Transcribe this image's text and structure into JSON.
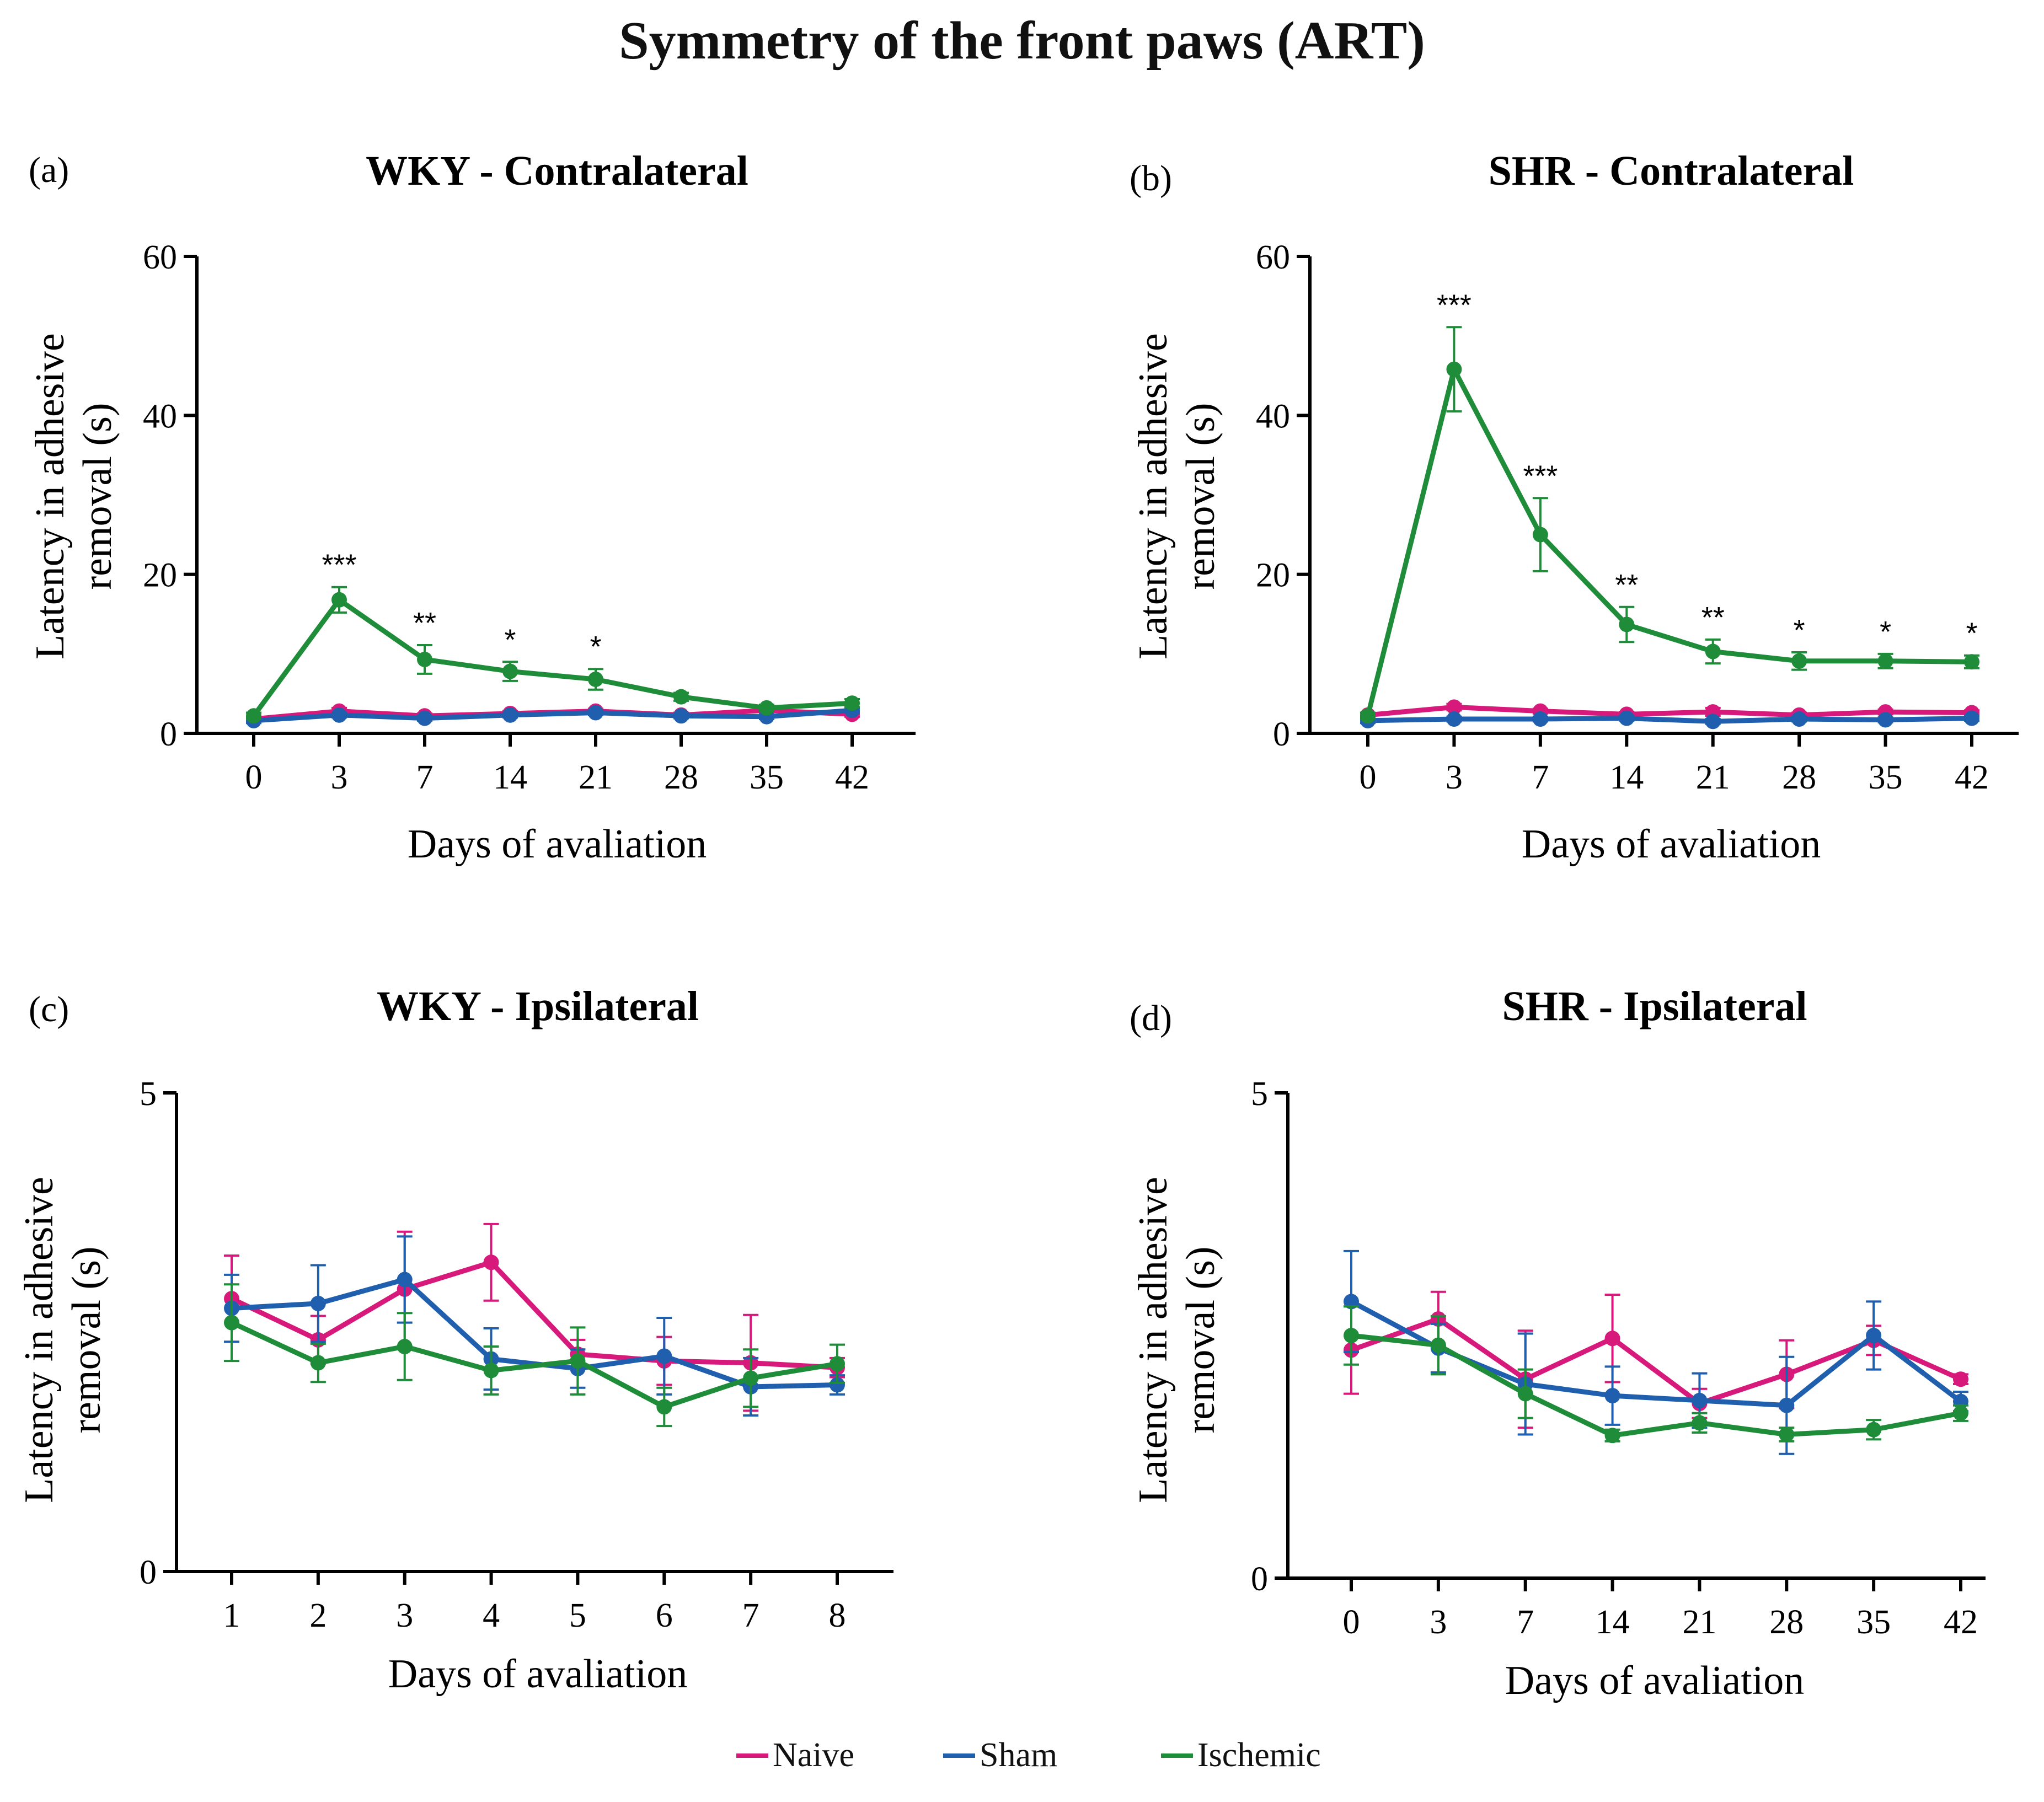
{
  "title": "Symmetry of the front paws (ART)",
  "legend": {
    "items": [
      {
        "label": "Naive",
        "color": "#d6197a"
      },
      {
        "label": "Sham",
        "color": "#1f5fae"
      },
      {
        "label": "Ischemic",
        "color": "#1f8c3a"
      }
    ]
  },
  "chart_data": [
    {
      "type": "line",
      "panel": "(a)",
      "title": "WKY - Contralateral",
      "xlabel": "Days of avaliation",
      "ylabel_line1": "Latency in adhesive",
      "ylabel_line2": "removal (s)",
      "categories": [
        "0",
        "3",
        "7",
        "14",
        "21",
        "28",
        "35",
        "42"
      ],
      "ylim": [
        0,
        60
      ],
      "yticks": [
        "0",
        "20",
        "40",
        "60"
      ],
      "series": [
        {
          "name": "Naive",
          "values": [
            1.8,
            2.8,
            2.2,
            2.5,
            2.8,
            2.3,
            2.9,
            2.4
          ],
          "errors": [
            0.3,
            0.4,
            0.3,
            0.3,
            0.3,
            0.3,
            0.4,
            0.3
          ]
        },
        {
          "name": "Sham",
          "values": [
            1.6,
            2.3,
            1.9,
            2.3,
            2.6,
            2.2,
            2.1,
            2.9
          ],
          "errors": [
            0.3,
            0.3,
            0.3,
            0.3,
            0.3,
            0.3,
            0.3,
            0.3
          ]
        },
        {
          "name": "Ischemic",
          "values": [
            2.2,
            16.8,
            9.3,
            7.8,
            6.8,
            4.6,
            3.2,
            3.8
          ],
          "errors": [
            0.4,
            1.6,
            1.8,
            1.2,
            1.3,
            0.5,
            0.4,
            0.5
          ]
        }
      ],
      "annotations": [
        "",
        "***",
        "**",
        "*",
        "*",
        "",
        "",
        ""
      ]
    },
    {
      "type": "line",
      "panel": "(b)",
      "title": "SHR - Contralateral",
      "xlabel": "Days of avaliation",
      "ylabel_line1": "Latency in adhesive",
      "ylabel_line2": "removal (s)",
      "categories": [
        "0",
        "3",
        "7",
        "14",
        "21",
        "28",
        "35",
        "42"
      ],
      "ylim": [
        0,
        60
      ],
      "yticks": [
        "0",
        "20",
        "40",
        "60"
      ],
      "series": [
        {
          "name": "Naive",
          "values": [
            2.3,
            3.3,
            2.8,
            2.4,
            2.7,
            2.3,
            2.7,
            2.6
          ],
          "errors": [
            0.3,
            0.4,
            0.3,
            0.3,
            0.5,
            0.3,
            0.3,
            0.3
          ]
        },
        {
          "name": "Sham",
          "values": [
            1.6,
            1.8,
            1.8,
            1.9,
            1.5,
            1.8,
            1.7,
            1.9
          ],
          "errors": [
            0.3,
            0.3,
            0.3,
            0.3,
            0.3,
            0.3,
            0.3,
            0.3
          ]
        },
        {
          "name": "Ischemic",
          "values": [
            2.2,
            45.8,
            25.0,
            13.7,
            10.3,
            9.1,
            9.1,
            9.0
          ],
          "errors": [
            0.4,
            5.3,
            4.6,
            2.2,
            1.5,
            1.1,
            0.9,
            0.8
          ]
        }
      ],
      "annotations": [
        "",
        "***",
        "***",
        "**",
        "**",
        "*",
        "*",
        "*"
      ]
    },
    {
      "type": "line",
      "panel": "(c)",
      "title": "WKY - Ipsilateral",
      "xlabel": "Days of avaliation",
      "ylabel_line1": "Latency in adhesive",
      "ylabel_line2": "removal (s)",
      "categories": [
        "1",
        "2",
        "3",
        "4",
        "5",
        "6",
        "7",
        "8"
      ],
      "ylim": [
        0,
        5
      ],
      "yticks": [
        "0",
        "5"
      ],
      "series": [
        {
          "name": "Naive",
          "values": [
            2.85,
            2.42,
            2.95,
            3.23,
            2.27,
            2.2,
            2.18,
            2.13
          ],
          "errors": [
            0.45,
            0.25,
            0.6,
            0.4,
            0.15,
            0.25,
            0.5,
            0.1
          ]
        },
        {
          "name": "Sham",
          "values": [
            2.75,
            2.8,
            3.05,
            2.22,
            2.12,
            2.25,
            1.93,
            1.95
          ],
          "errors": [
            0.35,
            0.4,
            0.45,
            0.32,
            0.2,
            0.4,
            0.3,
            0.1
          ]
        },
        {
          "name": "Ischemic",
          "values": [
            2.6,
            2.18,
            2.35,
            2.1,
            2.2,
            1.72,
            2.02,
            2.17
          ],
          "errors": [
            0.4,
            0.2,
            0.35,
            0.25,
            0.35,
            0.2,
            0.3,
            0.2
          ]
        }
      ],
      "annotations": [
        "",
        "",
        "",
        "",
        "",
        "",
        "",
        ""
      ]
    },
    {
      "type": "line",
      "panel": "(d)",
      "title": "SHR - Ipsilateral",
      "xlabel": "Days of avaliation",
      "ylabel_line1": "Latency in adhesive",
      "ylabel_line2": "removal (s)",
      "categories": [
        "0",
        "3",
        "7",
        "14",
        "21",
        "28",
        "35",
        "42"
      ],
      "ylim": [
        0,
        5
      ],
      "yticks": [
        "0",
        "5"
      ],
      "series": [
        {
          "name": "Naive",
          "values": [
            2.35,
            2.67,
            2.05,
            2.47,
            1.8,
            2.1,
            2.45,
            2.05
          ],
          "errors": [
            0.45,
            0.28,
            0.5,
            0.45,
            0.15,
            0.35,
            0.15,
            0.05
          ]
        },
        {
          "name": "Sham",
          "values": [
            2.85,
            2.37,
            2.0,
            1.88,
            1.83,
            1.78,
            2.5,
            1.82
          ],
          "errors": [
            0.52,
            0.25,
            0.52,
            0.3,
            0.28,
            0.5,
            0.35,
            0.1
          ]
        },
        {
          "name": "Ischemic",
          "values": [
            2.5,
            2.4,
            1.9,
            1.47,
            1.6,
            1.48,
            1.53,
            1.7
          ],
          "errors": [
            0.3,
            0.3,
            0.25,
            0.06,
            0.1,
            0.07,
            0.1,
            0.08
          ]
        }
      ],
      "annotations": [
        "",
        "",
        "",
        "",
        "",
        "",
        "",
        ""
      ]
    }
  ]
}
